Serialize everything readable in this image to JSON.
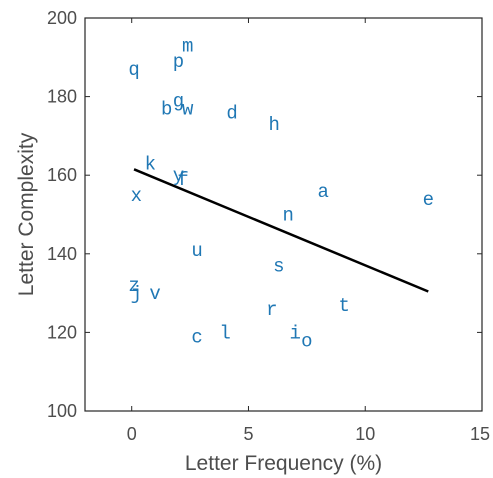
{
  "chart_data": {
    "type": "scatter",
    "title": "",
    "xlabel": "Letter Frequency (%)",
    "ylabel": "Letter Complexity",
    "xlim": [
      -2,
      15
    ],
    "ylim": [
      100,
      200
    ],
    "xticks": [
      0,
      5,
      10,
      15
    ],
    "xtick_labels": [
      "0",
      "5",
      "10",
      "15"
    ],
    "yticks": [
      100,
      120,
      140,
      160,
      180,
      200
    ],
    "ytick_labels": [
      "100",
      "120",
      "140",
      "160",
      "180",
      "200"
    ],
    "grid": false,
    "legend": "none",
    "marker_color": "#1f77b4",
    "points": [
      {
        "label": "m",
        "x": 2.4,
        "y": 193
      },
      {
        "label": "p",
        "x": 2.0,
        "y": 189
      },
      {
        "label": "q",
        "x": 0.1,
        "y": 187
      },
      {
        "label": "g",
        "x": 2.0,
        "y": 179
      },
      {
        "label": "b",
        "x": 1.5,
        "y": 177
      },
      {
        "label": "w",
        "x": 2.4,
        "y": 177
      },
      {
        "label": "d",
        "x": 4.3,
        "y": 176
      },
      {
        "label": "h",
        "x": 6.1,
        "y": 173
      },
      {
        "label": "k",
        "x": 0.8,
        "y": 163
      },
      {
        "label": "y",
        "x": 2.0,
        "y": 160
      },
      {
        "label": "f",
        "x": 2.2,
        "y": 159
      },
      {
        "label": "x",
        "x": 0.2,
        "y": 155
      },
      {
        "label": "a",
        "x": 8.2,
        "y": 156
      },
      {
        "label": "e",
        "x": 12.7,
        "y": 154
      },
      {
        "label": "n",
        "x": 6.7,
        "y": 150
      },
      {
        "label": "u",
        "x": 2.8,
        "y": 141
      },
      {
        "label": "s",
        "x": 6.3,
        "y": 137
      },
      {
        "label": "z",
        "x": 0.1,
        "y": 132
      },
      {
        "label": "j",
        "x": 0.2,
        "y": 130
      },
      {
        "label": "v",
        "x": 1.0,
        "y": 130
      },
      {
        "label": "t",
        "x": 9.1,
        "y": 127
      },
      {
        "label": "r",
        "x": 6.0,
        "y": 126
      },
      {
        "label": "l",
        "x": 4.0,
        "y": 120
      },
      {
        "label": "c",
        "x": 2.8,
        "y": 119
      },
      {
        "label": "i",
        "x": 7.0,
        "y": 120
      },
      {
        "label": "o",
        "x": 7.5,
        "y": 118
      }
    ],
    "fit_line": {
      "color": "#000000",
      "x": [
        0.1,
        12.7
      ],
      "y": [
        161.5,
        130.4
      ]
    }
  }
}
